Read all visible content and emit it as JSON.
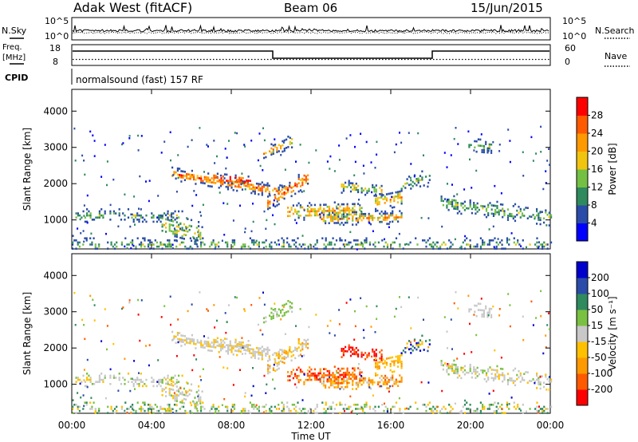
{
  "header": {
    "station": "Adak West (fitACF)",
    "beam": "Beam 06",
    "date": "15/Jun/2015"
  },
  "nsky_panel": {
    "left_label": "N.Sky",
    "right_label": "N.Search",
    "ticks_left": [
      "10^5",
      "10^0"
    ],
    "ticks_right": [
      "10^5",
      "10^0"
    ]
  },
  "freq_panel": {
    "left_label_1": "Freq.",
    "left_label_2": "[MHz]",
    "right_label": "Nave",
    "ticks_left": [
      "18",
      "8"
    ],
    "ticks_right": [
      "60",
      "0"
    ],
    "cpid_label": "CPID",
    "cpid_text": "normalsound (fast) 157 RF"
  },
  "colors": {
    "power_scale": [
      "#0000ff",
      "#2a4ca8",
      "#2f8a5e",
      "#74c043",
      "#f1c40f",
      "#ff9900",
      "#ff5a00",
      "#ff0000"
    ],
    "velocity_scale": [
      "#ff0000",
      "#ff5a00",
      "#ff9900",
      "#ffc000",
      "#c8c8c8",
      "#7ac142",
      "#2f8a5e",
      "#2a4ca8",
      "#0000cc"
    ]
  },
  "chart_data": [
    {
      "type": "heatmap",
      "name": "power",
      "ylabel": "Slant Range [km]",
      "yticks": [
        "1000",
        "2000",
        "3000",
        "4000"
      ],
      "ylim": [
        200,
        4600
      ],
      "xlim": [
        0,
        24
      ],
      "colorbar_label": "Power [dB]",
      "colorbar_ticks": [
        "4",
        "8",
        "12",
        "16",
        "20",
        "24",
        "28"
      ],
      "colorbar_range": [
        0,
        32
      ]
    },
    {
      "type": "heatmap",
      "name": "velocity",
      "ylabel": "Slant Range [km]",
      "yticks": [
        "1000",
        "2000",
        "3000",
        "4000"
      ],
      "ylim": [
        200,
        4600
      ],
      "xlim": [
        0,
        24
      ],
      "colorbar_label": "Velocity [m s⁻¹]",
      "colorbar_ticks": [
        "-200",
        "-100",
        "-50",
        "-15",
        "15",
        "50",
        "100",
        "200"
      ],
      "xlabel": "Time UT",
      "xticks": [
        "00:00",
        "04:00",
        "08:00",
        "12:00",
        "16:00",
        "20:00",
        "00:00"
      ]
    }
  ]
}
